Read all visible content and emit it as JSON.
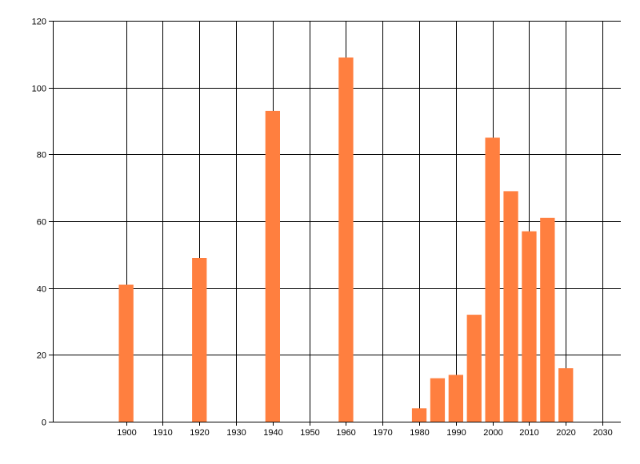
{
  "chart_data": {
    "type": "bar",
    "title": "",
    "xlabel": "",
    "ylabel": "",
    "x": [
      1900,
      1920,
      1940,
      1960,
      1980,
      1985,
      1990,
      1995,
      2000,
      2005,
      2010,
      2015,
      2020
    ],
    "values": [
      41,
      49,
      93,
      109,
      4,
      13,
      14,
      32,
      85,
      69,
      57,
      61,
      16
    ],
    "xlim": [
      1880,
      2035
    ],
    "ylim": [
      0,
      120
    ],
    "x_ticks": [
      1900,
      1910,
      1920,
      1930,
      1940,
      1950,
      1960,
      1970,
      1980,
      1990,
      2000,
      2010,
      2020,
      2030
    ],
    "y_ticks": [
      0,
      20,
      40,
      60,
      80,
      100,
      120
    ],
    "x_tick_labels": [
      "1900",
      "1910",
      "1920",
      "1930",
      "1940",
      "1950",
      "1960",
      "1970",
      "1980",
      "1990",
      "2000",
      "2010",
      "2020",
      "2030"
    ],
    "y_tick_labels": [
      "0",
      "20",
      "40",
      "60",
      "80",
      "100",
      "120"
    ],
    "bar_width": 4,
    "grid": true,
    "legend": "none",
    "colors": {
      "bar": "#ff7f3f",
      "grid": "#000000",
      "axis": "#000000",
      "background": "#ffffff"
    }
  }
}
